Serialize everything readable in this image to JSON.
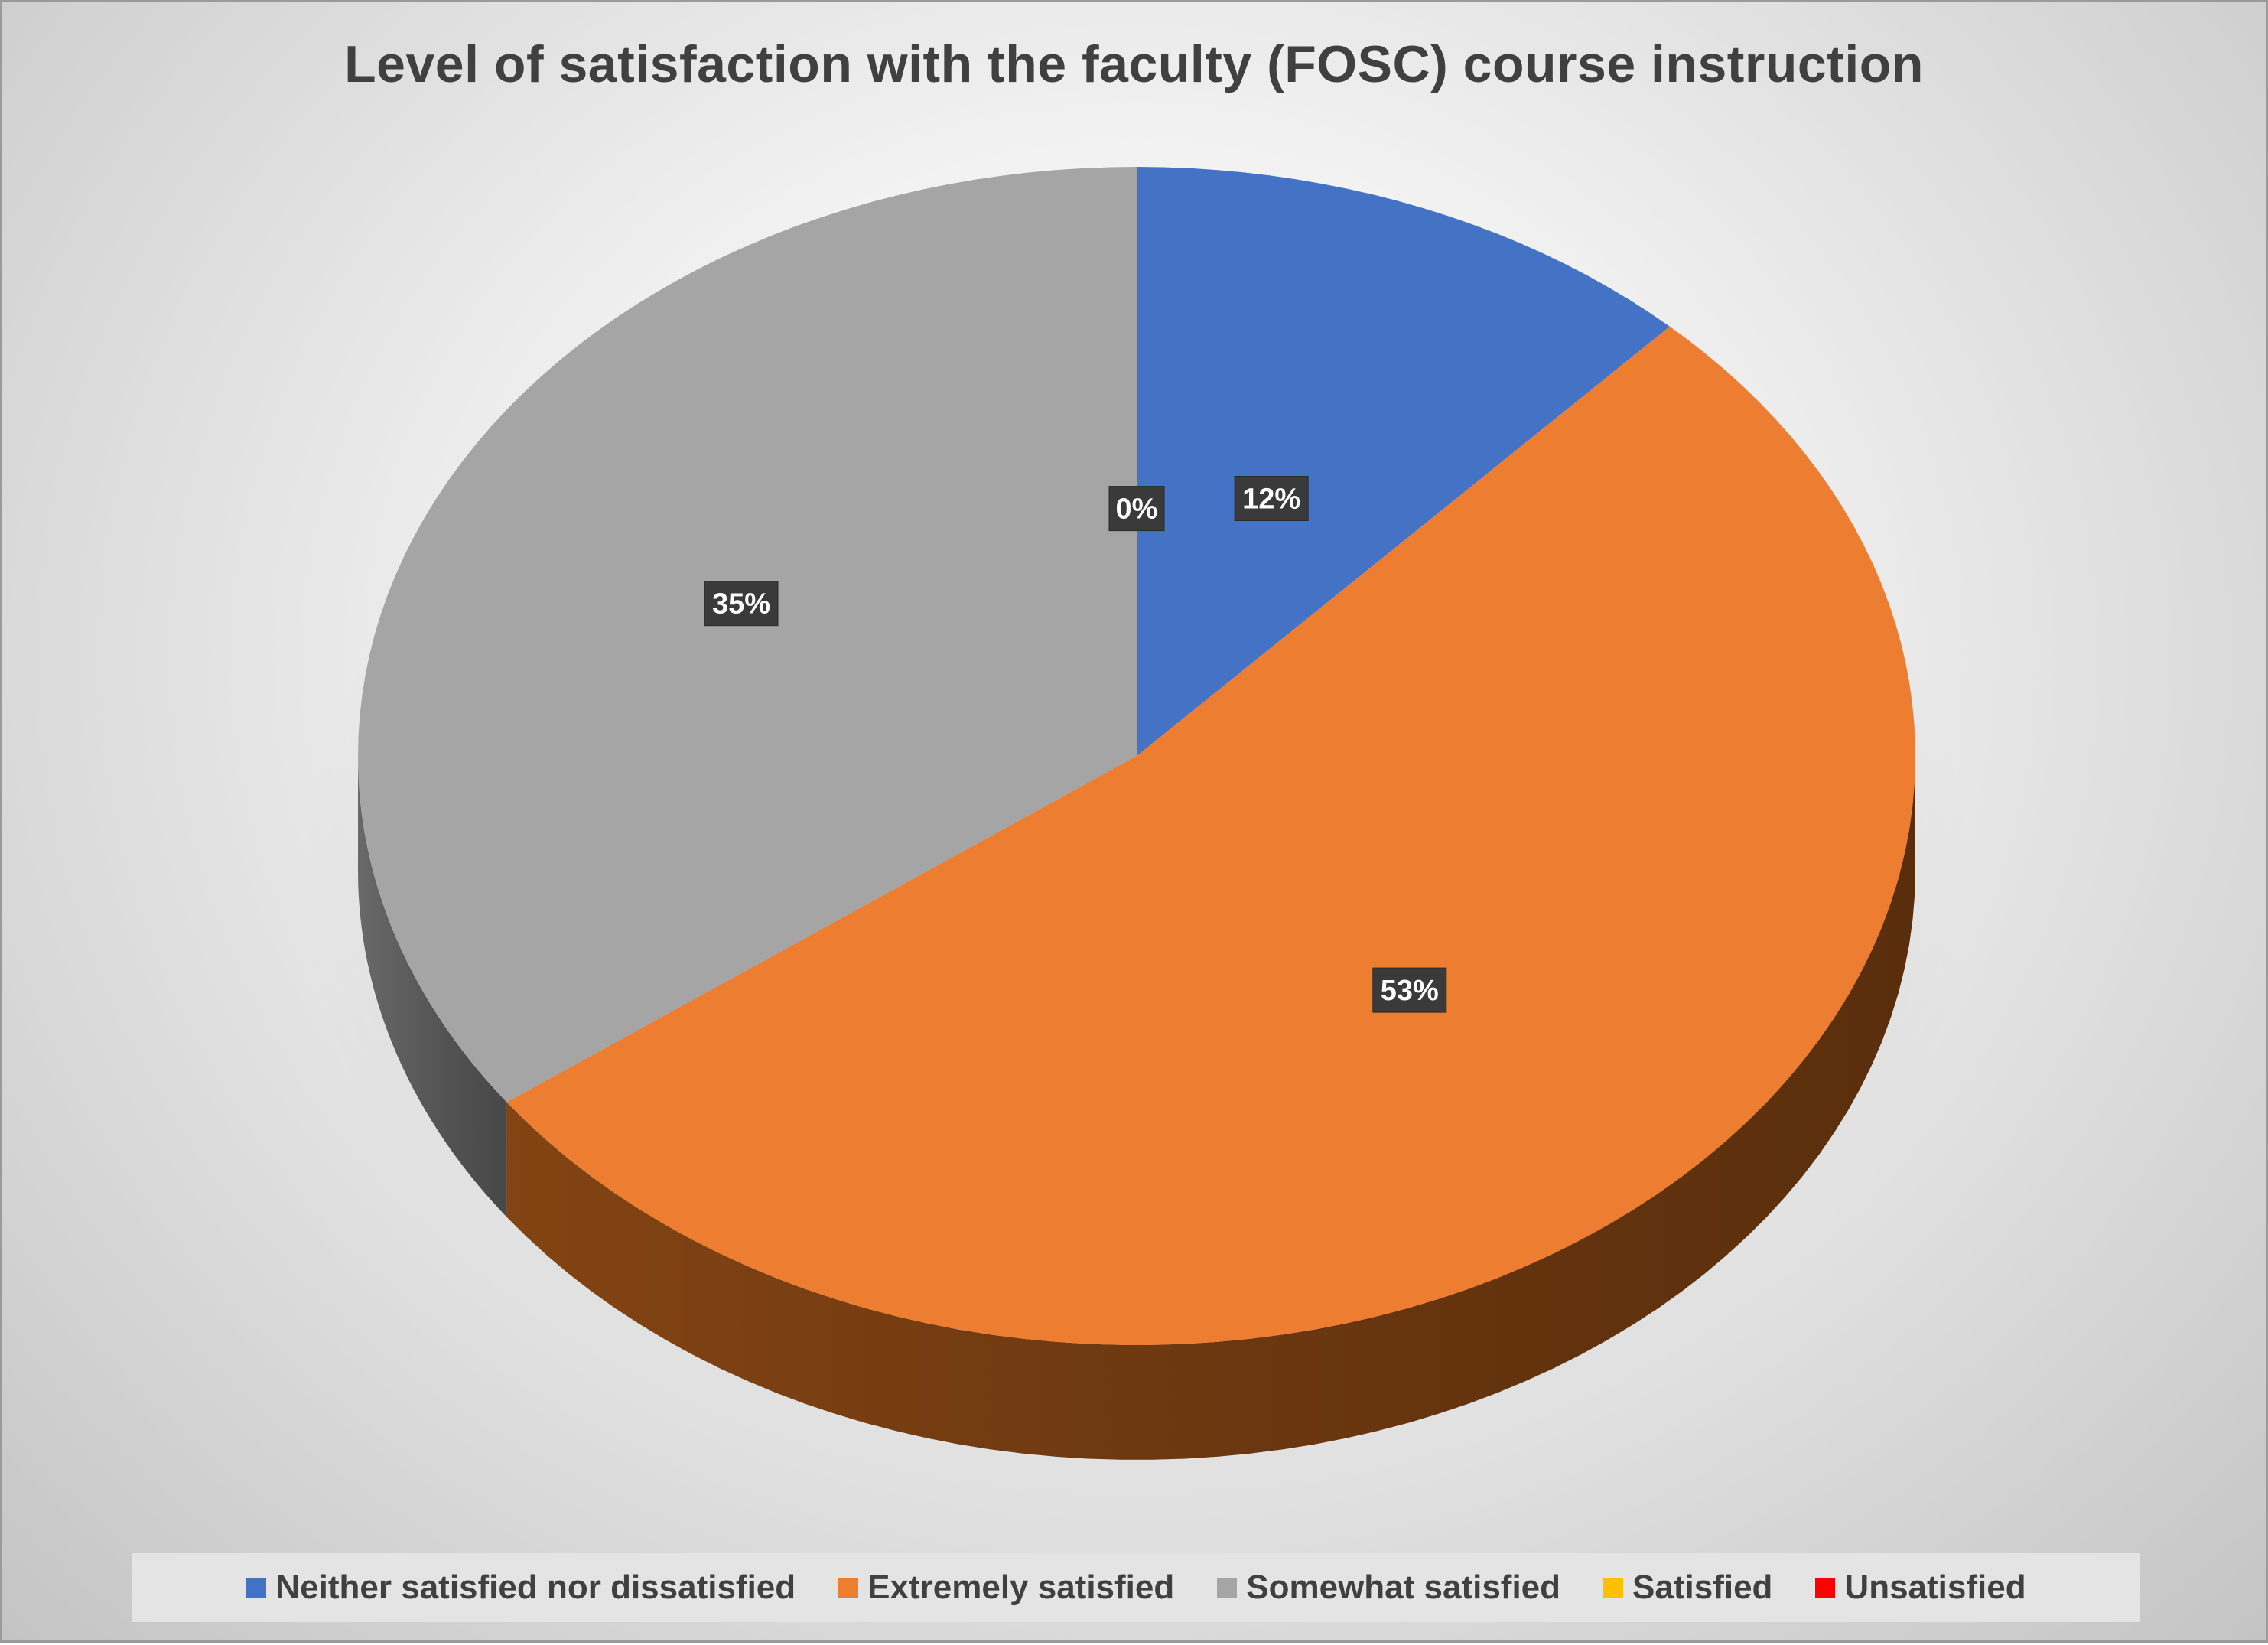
{
  "chart_data": {
    "type": "pie",
    "title": "Level of satisfaction with the faculty (FOSC) course instruction",
    "slices": [
      {
        "name": "Neither satisfied nor dissatisfied",
        "value": 12,
        "label": "12%",
        "color": "#4472C4",
        "side_color": "#2F5597"
      },
      {
        "name": "Extremely satisfied",
        "value": 53,
        "label": "53%",
        "color": "#ED7D31",
        "side_color": "#8A4714"
      },
      {
        "name": "Somewhat satisfied",
        "value": 35,
        "label": "35%",
        "color": "#A5A5A5",
        "side_color": "#6E6E6E"
      },
      {
        "name": "Satisfied",
        "value": 0,
        "label": "0%",
        "color": "#FFC000",
        "side_color": "#B38600"
      },
      {
        "name": "Unsatisfied",
        "value": 0,
        "label": "",
        "color": "#FF0000",
        "side_color": "#990000"
      }
    ],
    "legend_position": "bottom",
    "style": "3d-tilted"
  }
}
